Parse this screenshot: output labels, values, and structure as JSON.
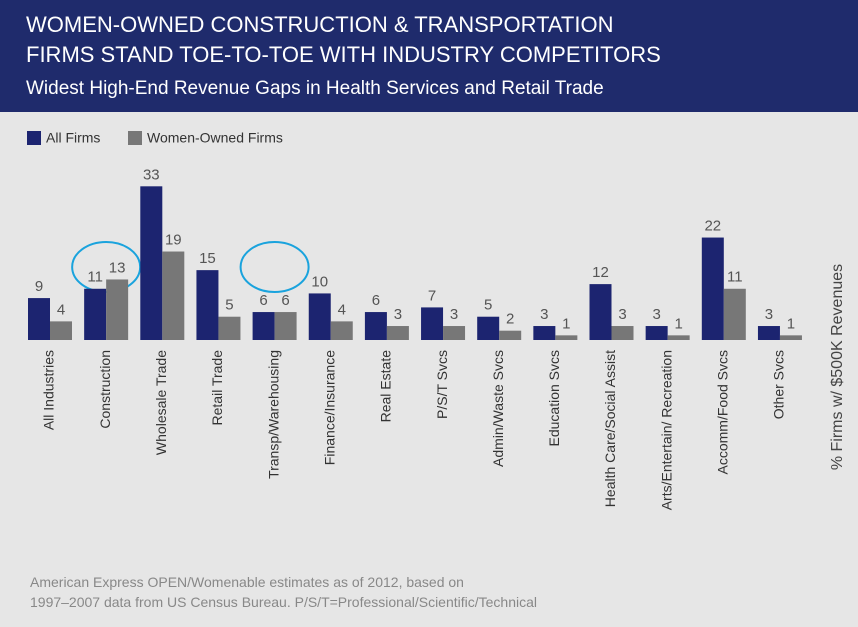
{
  "chart_data": {
    "type": "bar",
    "title": [
      "WOMEN-OWNED CONSTRUCTION & TRANSPORTATION",
      "FIRMS STAND TOE-TO-TOE WITH INDUSTRY COMPETITORS"
    ],
    "subtitle": "Widest High-End Revenue Gaps in Health Services and Retail Trade",
    "y_label": "% Firms w/ $500K Revenues",
    "source": [
      "American Express OPEN/Womenable estimates as of 2012, based on",
      "1997–2007 data from US Census Bureau. P/S/T=Professional/Scientific/Technical"
    ],
    "categories": [
      "All Industries",
      "Construction",
      "Wholesale Trade",
      "Retail Trade",
      "Transp/Warehousing",
      "Finance/Insurance",
      "Real Estate",
      "P/S/T Svcs",
      "Admin/Waste Svcs",
      "Education Svcs",
      "Health Care/Social Assist",
      "Arts/Entertain/ Recreation",
      "Accomm/Food Svcs",
      "Other Svcs"
    ],
    "series": [
      {
        "name": "All Firms",
        "color": "#1c2470",
        "values": [
          9,
          11,
          33,
          15,
          6,
          10,
          6,
          7,
          5,
          3,
          12,
          3,
          22,
          3
        ]
      },
      {
        "name": "Women-Owned Firms",
        "color": "#777777",
        "values": [
          4,
          13,
          19,
          5,
          6,
          4,
          3,
          3,
          2,
          1,
          3,
          1,
          11,
          1
        ]
      }
    ],
    "ylim": [
      0,
      35
    ],
    "legend": "top-left"
  }
}
